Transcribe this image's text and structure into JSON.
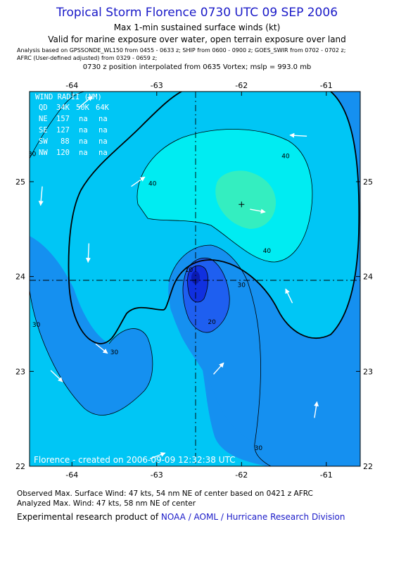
{
  "header": {
    "title": "Tropical Storm Florence 0730 UTC 09 SEP 2006",
    "subtitle": "Max 1-min sustained surface winds (kt)",
    "validity": "Valid for marine exposure over water, open terrain exposure over land",
    "analysis_line1": "Analysis based on  GPSSONDE_WL150 from 0455 - 0633 z;  SHIP from 0600 - 0900 z;  GOES_SWIR from 0702 - 0702 z;",
    "analysis_line2": "AFRC (User-defined adjusted) from 0329 - 0659 z;",
    "position_line": "0730 z position interpolated from 0635 Vortex; mslp = 993.0 mb"
  },
  "footer": {
    "observed": "Observed Max. Surface Wind: 47 kts, 54 nm NE of center based on 0421 z AFRC",
    "analyzed": "Analyzed Max. Wind: 47 kts, 58 nm NE of center",
    "product_prefix": "Experimental research product of ",
    "product_link": "NOAA / AOML / Hurricane Research Division"
  },
  "chart_data": {
    "type": "contour",
    "x_tick_labels": [
      "-64",
      "-63",
      "-62",
      "-61"
    ],
    "y_tick_labels": [
      "25",
      "24",
      "23",
      "22"
    ],
    "xlim": [
      -64.5,
      -60.6
    ],
    "ylim": [
      22.0,
      25.95
    ],
    "center": {
      "lon": -62.55,
      "lat": 24.0
    },
    "max_wind_marker": {
      "lon": -62.0,
      "lat": 24.76
    },
    "contour_levels": [
      10,
      20,
      30,
      40
    ],
    "contour_labels": [
      {
        "text": "40",
        "lon": -61.48,
        "lat": 25.25
      },
      {
        "text": "40",
        "lon": -63.05,
        "lat": 24.96
      },
      {
        "text": "40",
        "lon": -61.7,
        "lat": 24.25
      },
      {
        "text": "30",
        "lon": -64.47,
        "lat": 25.27
      },
      {
        "text": "30",
        "lon": -62.0,
        "lat": 23.89
      },
      {
        "text": "30",
        "lon": -64.42,
        "lat": 23.47
      },
      {
        "text": "30",
        "lon": -63.5,
        "lat": 23.18
      },
      {
        "text": "30",
        "lon": -61.8,
        "lat": 22.17
      },
      {
        "text": "20",
        "lon": -62.35,
        "lat": 23.5
      },
      {
        "text": "10",
        "lon": -62.62,
        "lat": 24.05
      }
    ],
    "wind_radii": {
      "title": "WIND RADII (NM)",
      "columns": [
        "QD",
        "34K",
        "50K",
        "64K"
      ],
      "rows": [
        [
          "NE",
          "157",
          "na",
          "na"
        ],
        [
          "SE",
          "127",
          "na",
          "na"
        ],
        [
          "SW",
          "88",
          "na",
          "na"
        ],
        [
          "NW",
          "120",
          "na",
          "na"
        ]
      ]
    },
    "observation_vectors": [
      {
        "lon": -63.92,
        "lat": 25.78,
        "dlon": 0.16,
        "dlat": 0.12
      },
      {
        "lon": -61.23,
        "lat": 25.48,
        "dlon": -0.2,
        "dlat": 0.01
      },
      {
        "lon": -64.35,
        "lat": 24.95,
        "dlon": -0.02,
        "dlat": -0.2
      },
      {
        "lon": -63.3,
        "lat": 24.95,
        "dlon": 0.16,
        "dlat": 0.1
      },
      {
        "lon": -61.9,
        "lat": 24.71,
        "dlon": 0.18,
        "dlat": -0.03
      },
      {
        "lon": -63.8,
        "lat": 24.35,
        "dlon": -0.01,
        "dlat": -0.2
      },
      {
        "lon": -61.4,
        "lat": 23.72,
        "dlon": -0.08,
        "dlat": 0.15
      },
      {
        "lon": -63.72,
        "lat": 23.29,
        "dlon": 0.14,
        "dlat": -0.1
      },
      {
        "lon": -64.25,
        "lat": 23.01,
        "dlon": 0.14,
        "dlat": -0.12
      },
      {
        "lon": -62.33,
        "lat": 22.97,
        "dlon": 0.12,
        "dlat": 0.12
      },
      {
        "lon": -61.14,
        "lat": 22.51,
        "dlon": 0.03,
        "dlat": 0.17
      },
      {
        "lon": -63.08,
        "lat": 22.08,
        "dlon": 0.18,
        "dlat": 0.06
      }
    ],
    "credit": "Florence - created on 2006-09-09 12:32:38 UTC"
  },
  "colors": {
    "title": "#1a1ac8",
    "band_0_10": "#1030e0",
    "band_10_20": "#1e5ff0",
    "band_20_30": "#1590f0",
    "band_30_40": "#00c6f5",
    "band_40_plus": "#00ecf2",
    "core": "#34eec0",
    "land_frame": "#000000"
  }
}
